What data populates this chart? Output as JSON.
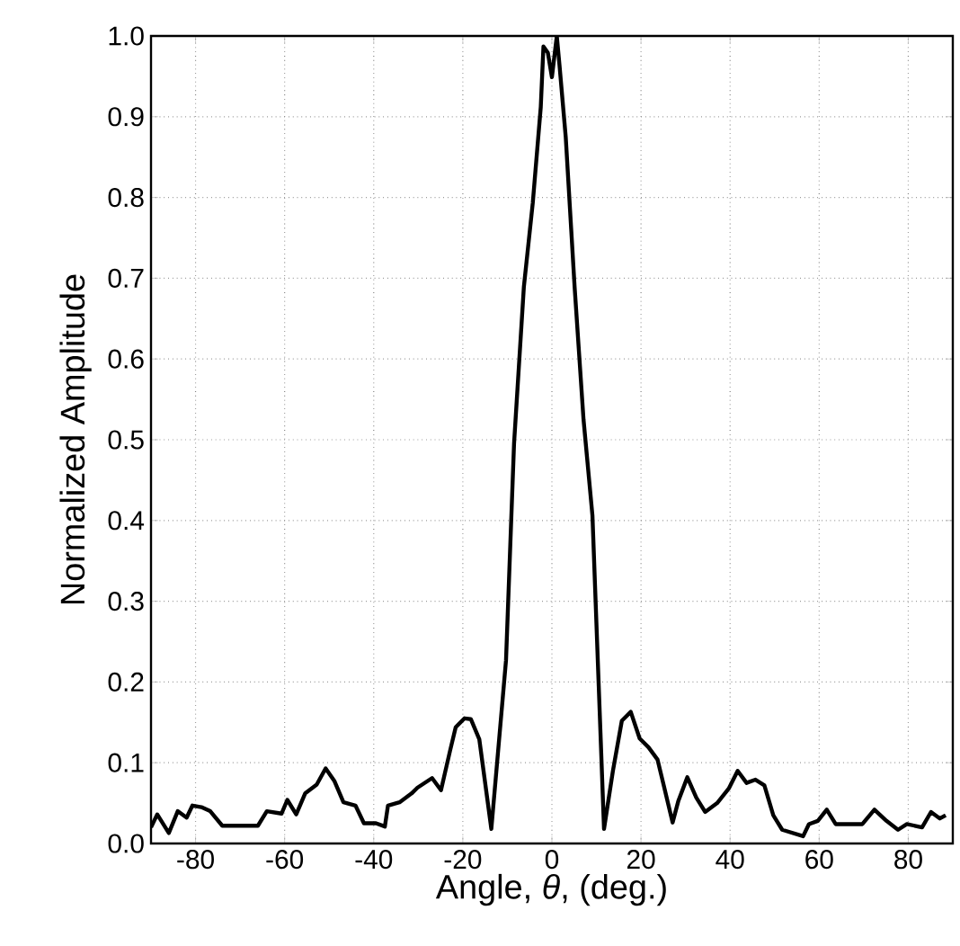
{
  "chart_data": {
    "type": "line",
    "xlabel": "Angle, *θ*, (deg.)",
    "ylabel": "Normalized Amplitude",
    "xlim": [
      -90,
      90
    ],
    "ylim": [
      0,
      1
    ],
    "xticks": [
      -80,
      -60,
      -40,
      -20,
      0,
      20,
      40,
      60,
      80
    ],
    "yticks": [
      {
        "value": 0,
        "label": "0.0"
      },
      0.1,
      0.2,
      0.3,
      0.4,
      0.5,
      0.6,
      0.7,
      0.8,
      0.9,
      {
        "value": 1,
        "label": "1.0"
      }
    ],
    "grid": true,
    "marker": "none",
    "line_style": "solid",
    "series": [
      {
        "color": "#000000",
        "x": [
          -90,
          -88.6,
          -86,
          -84,
          -82,
          -80.7,
          -78.7,
          -76.7,
          -74,
          -66,
          -64,
          -60.7,
          -59.4,
          -57.4,
          -55.4,
          -52.8,
          -50.8,
          -48.8,
          -46.8,
          -44.1,
          -42.2,
          -39.5,
          -37.5,
          -36.8,
          -34.2,
          -31.5,
          -30.2,
          -26.9,
          -24.9,
          -22.9,
          -21.6,
          -19.6,
          -18.2,
          -16.3,
          -13.6,
          -10.3,
          -8.5,
          -6.3,
          -4.3,
          -2.5,
          -1.9,
          -0.9,
          0,
          1.1,
          1.7,
          3.1,
          5.1,
          7.1,
          9.1,
          11.7,
          13.7,
          15.7,
          17.7,
          19.7,
          21.7,
          23.7,
          25.1,
          27.1,
          28.4,
          30.4,
          32.4,
          34.4,
          37.1,
          39.7,
          41.7,
          43.7,
          45.7,
          47.7,
          49.7,
          51.7,
          56.4,
          57.7,
          59.7,
          61.7,
          63.7,
          69.7,
          72.4,
          75.1,
          77.7,
          79.7,
          83.1,
          85.1,
          87.1,
          88.4
        ],
        "values": [
          0.02,
          0.036,
          0.013,
          0.04,
          0.032,
          0.047,
          0.045,
          0.04,
          0.022,
          0.022,
          0.04,
          0.037,
          0.054,
          0.036,
          0.062,
          0.073,
          0.093,
          0.077,
          0.051,
          0.047,
          0.025,
          0.025,
          0.021,
          0.047,
          0.051,
          0.062,
          0.069,
          0.081,
          0.066,
          0.114,
          0.144,
          0.155,
          0.154,
          0.129,
          0.018,
          0.227,
          0.495,
          0.689,
          0.793,
          0.912,
          0.987,
          0.979,
          0.949,
          1.0,
          0.964,
          0.875,
          0.689,
          0.525,
          0.406,
          0.018,
          0.09,
          0.152,
          0.163,
          0.13,
          0.119,
          0.104,
          0.072,
          0.026,
          0.053,
          0.082,
          0.057,
          0.039,
          0.05,
          0.068,
          0.09,
          0.075,
          0.079,
          0.072,
          0.035,
          0.017,
          0.009,
          0.024,
          0.028,
          0.042,
          0.024,
          0.024,
          0.042,
          0.028,
          0.017,
          0.024,
          0.02,
          0.039,
          0.031,
          0.035
        ]
      }
    ]
  }
}
